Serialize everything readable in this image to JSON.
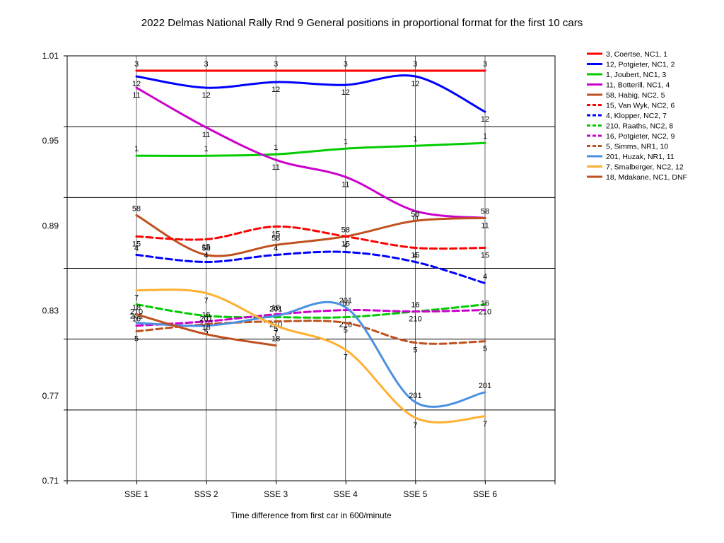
{
  "chart_data": {
    "type": "line",
    "title": "2022 Delmas National Rally Rnd 9  General positions in proportional format for the first 10 cars",
    "xlabel": "Time difference from first car in 600/minute",
    "ylabel": "",
    "categories": [
      "SSE 1",
      "SSS 2",
      "SSE 3",
      "SSE 4",
      "SSE 5",
      "SSE 6"
    ],
    "ylim": [
      0.71,
      1.01
    ],
    "yticks": [
      "0.71",
      "0.77",
      "0.83",
      "0.89",
      "0.95",
      "1.01"
    ],
    "grid": true,
    "legend_position": "right",
    "series": [
      {
        "name": "3, Coertse, NC1, 1",
        "label": "3",
        "color": "#ff0000",
        "dash": false,
        "values": [
          0.9995,
          0.9995,
          0.9995,
          0.9995,
          0.9995,
          0.9995
        ]
      },
      {
        "name": "12, Potgieter, NC1, 2",
        "label": "12",
        "color": "#0000ff",
        "dash": false,
        "values": [
          0.9955,
          0.9875,
          0.9915,
          0.9895,
          0.9955,
          0.9705
        ]
      },
      {
        "name": "1, Joubert, NC1, 3",
        "label": "1",
        "color": "#00cc00",
        "dash": false,
        "values": [
          0.9395,
          0.9395,
          0.9405,
          0.9445,
          0.9465,
          0.9485
        ]
      },
      {
        "name": "11, Botterill, NC1, 4",
        "label": "11",
        "color": "#cc00cc",
        "dash": false,
        "values": [
          0.9875,
          0.9595,
          0.9365,
          0.9245,
          0.9005,
          0.8955
        ]
      },
      {
        "name": "58, Habig, NC2, 5",
        "label": "58",
        "color": "#c0501e",
        "dash": false,
        "values": [
          0.8975,
          0.8695,
          0.8765,
          0.8825,
          0.8935,
          0.8955
        ]
      },
      {
        "name": "15, Van Wyk, NC2, 6",
        "label": "15",
        "color": "#ff0000",
        "dash": true,
        "values": [
          0.8825,
          0.8805,
          0.8895,
          0.8825,
          0.8745,
          0.8745
        ]
      },
      {
        "name": "4, Klopper, NC2, 7",
        "label": "4",
        "color": "#0000ff",
        "dash": true,
        "values": [
          0.8695,
          0.8645,
          0.8695,
          0.8715,
          0.8645,
          0.8495
        ]
      },
      {
        "name": "210, Raaths, NC2, 8",
        "label": "210",
        "color": "#00cc00",
        "dash": true,
        "values": [
          0.8345,
          0.8265,
          0.8255,
          0.8255,
          0.8295,
          0.8345
        ]
      },
      {
        "name": "16, Potgieter, NC2, 9",
        "label": "16",
        "color": "#cc00cc",
        "dash": true,
        "values": [
          0.8195,
          0.8225,
          0.8275,
          0.8305,
          0.8295,
          0.8305
        ]
      },
      {
        "name": "5, Simms, NR1, 10",
        "label": "5",
        "color": "#c0501e",
        "dash": true,
        "values": [
          0.8155,
          0.8205,
          0.8225,
          0.8215,
          0.8075,
          0.8085
        ]
      },
      {
        "name": "201, Huzak, NR1, 11",
        "label": "201",
        "color": "#4a90e2",
        "dash": false,
        "values": [
          0.8215,
          0.8195,
          0.8265,
          0.8325,
          0.7655,
          0.7725
        ]
      },
      {
        "name": "7, Smalberger, NC2, 12",
        "label": "7",
        "color": "#ffb030",
        "dash": false,
        "values": [
          0.8445,
          0.8425,
          0.8195,
          0.8025,
          0.7545,
          0.7555
        ]
      },
      {
        "name": "18, Mdakane, NC1, DNF",
        "label": "18",
        "color": "#c0501e",
        "dash": false,
        "values": [
          0.8275,
          0.8135,
          0.8055,
          null,
          null,
          null
        ]
      }
    ]
  }
}
